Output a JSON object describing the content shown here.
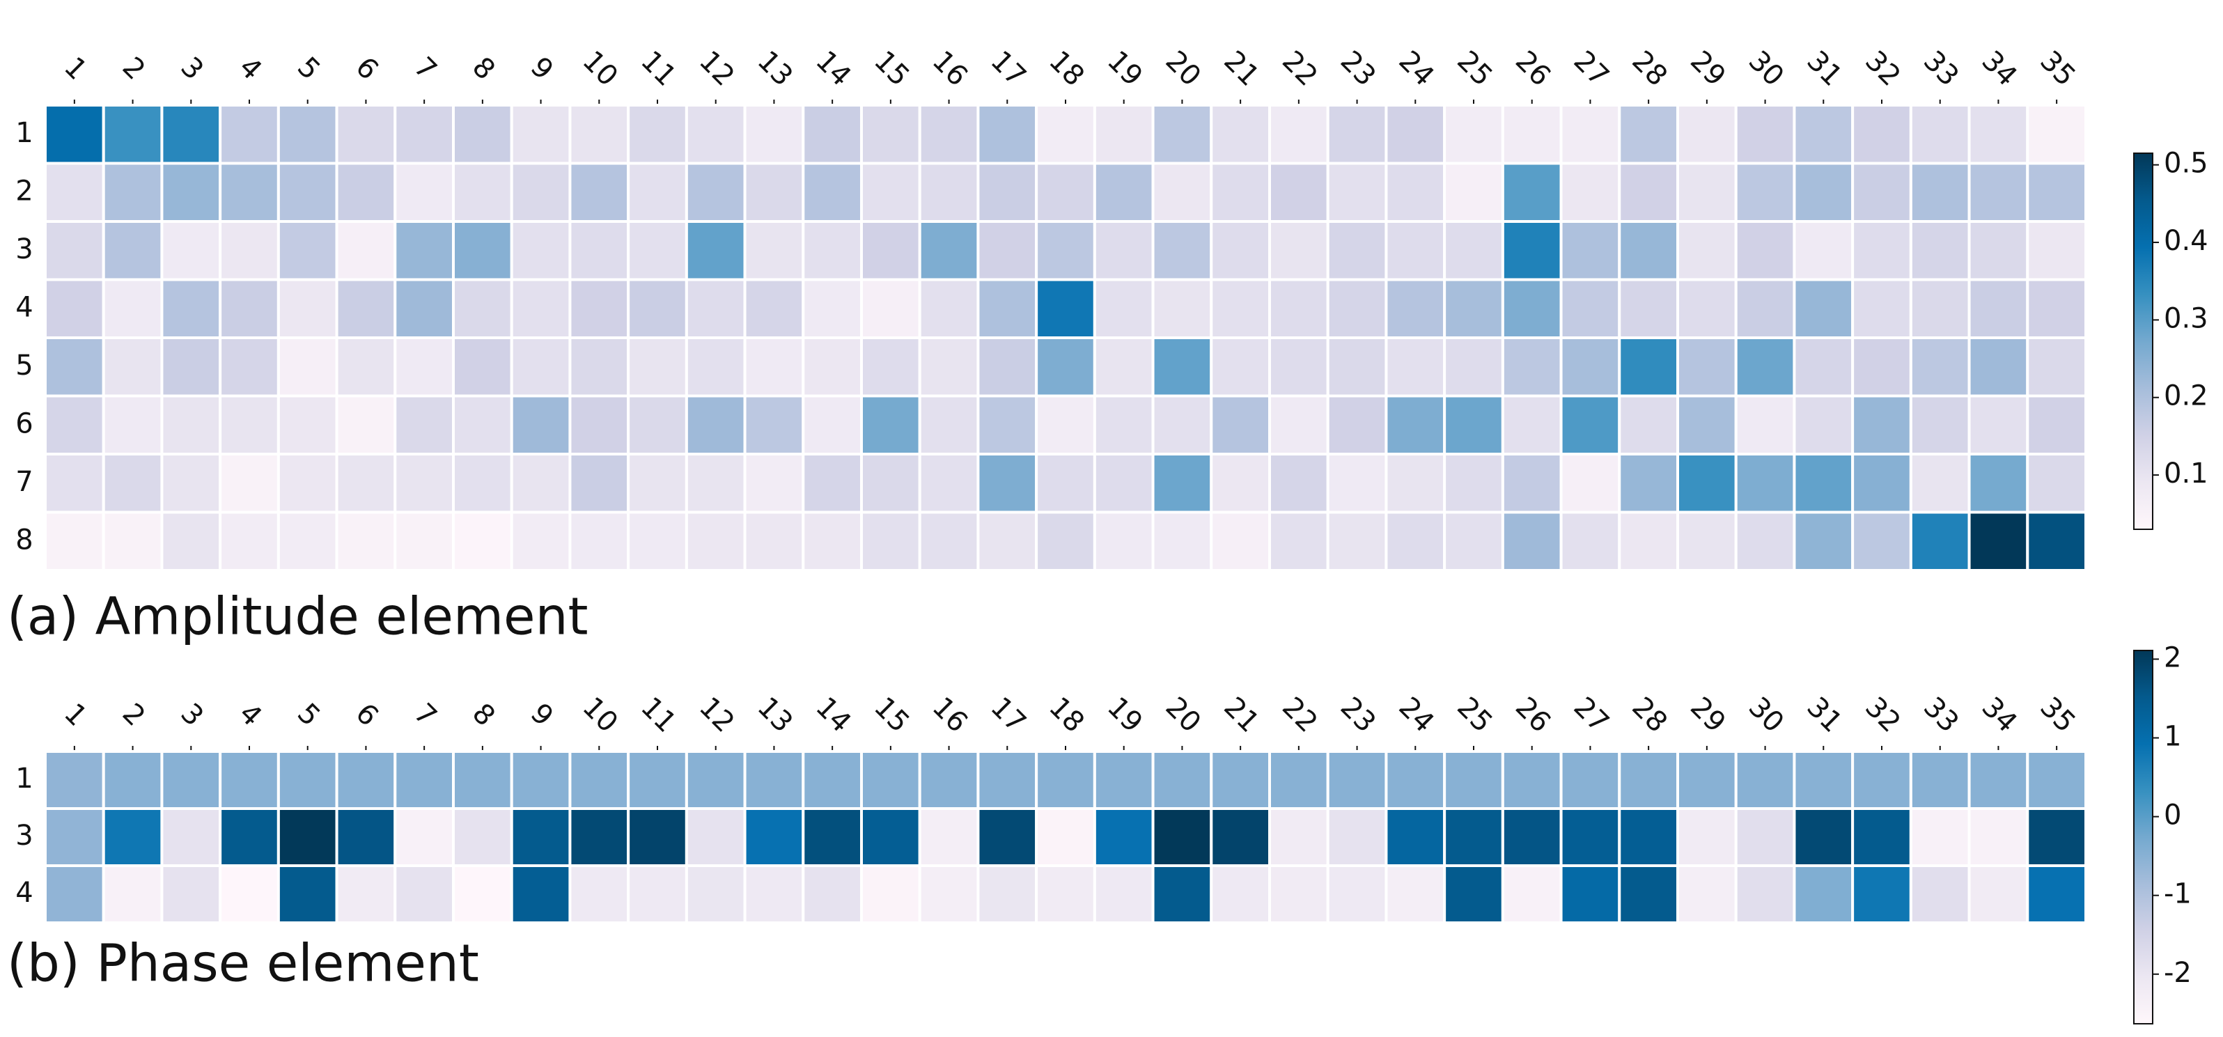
{
  "chart_data": [
    {
      "type": "heatmap",
      "caption": "(a) Amplitude element",
      "colormap": "PuBu",
      "columns": [
        1,
        2,
        3,
        4,
        5,
        6,
        7,
        8,
        9,
        10,
        11,
        12,
        13,
        14,
        15,
        16,
        17,
        18,
        19,
        20,
        21,
        22,
        23,
        24,
        25,
        26,
        27,
        28,
        29,
        30,
        31,
        32,
        33,
        34,
        35
      ],
      "rows": [
        1,
        2,
        3,
        4,
        5,
        6,
        7,
        8
      ],
      "values": [
        [
          0.4,
          0.33,
          0.35,
          0.17,
          0.19,
          0.13,
          0.14,
          0.16,
          0.1,
          0.1,
          0.13,
          0.11,
          0.08,
          0.16,
          0.13,
          0.14,
          0.2,
          0.07,
          0.09,
          0.18,
          0.11,
          0.08,
          0.14,
          0.15,
          0.07,
          0.07,
          0.07,
          0.18,
          0.09,
          0.15,
          0.18,
          0.15,
          0.12,
          0.11,
          0.05
        ],
        [
          0.11,
          0.2,
          0.23,
          0.21,
          0.19,
          0.16,
          0.08,
          0.11,
          0.13,
          0.19,
          0.11,
          0.19,
          0.13,
          0.19,
          0.11,
          0.12,
          0.16,
          0.14,
          0.19,
          0.09,
          0.12,
          0.15,
          0.11,
          0.12,
          0.06,
          0.3,
          0.09,
          0.15,
          0.1,
          0.18,
          0.21,
          0.16,
          0.2,
          0.19,
          0.19
        ],
        [
          0.13,
          0.19,
          0.08,
          0.09,
          0.17,
          0.06,
          0.23,
          0.25,
          0.11,
          0.12,
          0.11,
          0.29,
          0.1,
          0.11,
          0.15,
          0.26,
          0.15,
          0.18,
          0.12,
          0.18,
          0.12,
          0.1,
          0.14,
          0.12,
          0.12,
          0.36,
          0.2,
          0.23,
          0.1,
          0.15,
          0.08,
          0.12,
          0.14,
          0.13,
          0.09
        ],
        [
          0.15,
          0.08,
          0.19,
          0.16,
          0.09,
          0.16,
          0.22,
          0.13,
          0.11,
          0.15,
          0.16,
          0.12,
          0.14,
          0.08,
          0.06,
          0.11,
          0.2,
          0.38,
          0.11,
          0.1,
          0.11,
          0.12,
          0.14,
          0.19,
          0.21,
          0.26,
          0.17,
          0.14,
          0.12,
          0.16,
          0.23,
          0.12,
          0.13,
          0.16,
          0.15
        ],
        [
          0.2,
          0.1,
          0.16,
          0.14,
          0.06,
          0.1,
          0.08,
          0.15,
          0.11,
          0.13,
          0.1,
          0.11,
          0.08,
          0.09,
          0.12,
          0.1,
          0.16,
          0.26,
          0.1,
          0.29,
          0.11,
          0.12,
          0.13,
          0.11,
          0.12,
          0.18,
          0.21,
          0.34,
          0.19,
          0.28,
          0.14,
          0.15,
          0.18,
          0.22,
          0.13
        ],
        [
          0.14,
          0.08,
          0.1,
          0.1,
          0.09,
          0.05,
          0.13,
          0.11,
          0.22,
          0.15,
          0.13,
          0.22,
          0.18,
          0.08,
          0.27,
          0.11,
          0.18,
          0.07,
          0.11,
          0.11,
          0.19,
          0.08,
          0.15,
          0.26,
          0.28,
          0.11,
          0.31,
          0.12,
          0.21,
          0.08,
          0.12,
          0.23,
          0.14,
          0.11,
          0.15
        ],
        [
          0.11,
          0.13,
          0.1,
          0.05,
          0.09,
          0.1,
          0.1,
          0.11,
          0.1,
          0.16,
          0.1,
          0.1,
          0.07,
          0.14,
          0.13,
          0.11,
          0.26,
          0.12,
          0.12,
          0.28,
          0.09,
          0.14,
          0.08,
          0.1,
          0.12,
          0.17,
          0.06,
          0.23,
          0.33,
          0.26,
          0.29,
          0.25,
          0.1,
          0.27,
          0.13
        ],
        [
          0.05,
          0.05,
          0.1,
          0.07,
          0.07,
          0.05,
          0.05,
          0.04,
          0.07,
          0.08,
          0.08,
          0.09,
          0.09,
          0.09,
          0.11,
          0.11,
          0.1,
          0.13,
          0.08,
          0.08,
          0.06,
          0.11,
          0.1,
          0.12,
          0.11,
          0.22,
          0.11,
          0.09,
          0.1,
          0.12,
          0.24,
          0.18,
          0.36,
          0.52,
          0.47
        ]
      ],
      "clim": [
        0.03,
        0.515
      ],
      "cticks": [
        0.1,
        0.2,
        0.3,
        0.4,
        0.5
      ]
    },
    {
      "type": "heatmap",
      "caption": "(b) Phase element",
      "colormap": "PuBu",
      "columns": [
        1,
        2,
        3,
        4,
        5,
        6,
        7,
        8,
        9,
        10,
        11,
        12,
        13,
        14,
        15,
        16,
        17,
        18,
        19,
        20,
        21,
        22,
        23,
        24,
        25,
        26,
        27,
        28,
        29,
        30,
        31,
        32,
        33,
        34,
        35
      ],
      "rows": [
        1,
        3,
        4
      ],
      "values": [
        [
          -0.6,
          -0.5,
          -0.5,
          -0.5,
          -0.5,
          -0.5,
          -0.5,
          -0.5,
          -0.5,
          -0.5,
          -0.5,
          -0.5,
          -0.5,
          -0.5,
          -0.5,
          -0.5,
          -0.5,
          -0.5,
          -0.5,
          -0.5,
          -0.5,
          -0.5,
          -0.5,
          -0.5,
          -0.5,
          -0.5,
          -0.5,
          -0.5,
          -0.5,
          -0.5,
          -0.5,
          -0.5,
          -0.5,
          -0.5,
          -0.5
        ],
        [
          -0.6,
          0.8,
          -1.9,
          1.5,
          2.1,
          1.6,
          -2.4,
          -1.9,
          1.5,
          1.8,
          1.9,
          -1.9,
          0.9,
          1.7,
          1.4,
          -2.3,
          1.8,
          -2.5,
          0.9,
          2.1,
          1.9,
          -2.2,
          -1.9,
          1.2,
          1.5,
          1.6,
          1.4,
          1.4,
          -2.2,
          -1.8,
          1.8,
          1.5,
          -2.4,
          -2.4,
          1.8
        ],
        [
          -0.6,
          -2.4,
          -1.9,
          -2.6,
          1.5,
          -2.2,
          -1.9,
          -2.6,
          1.4,
          -2.1,
          -2.1,
          -2.0,
          -2.1,
          -1.9,
          -2.5,
          -2.3,
          -2.0,
          -2.2,
          -2.1,
          1.5,
          -2.1,
          -2.2,
          -2.1,
          -2.3,
          1.5,
          -2.4,
          1.1,
          1.5,
          -2.3,
          -1.8,
          -0.4,
          0.8,
          -1.8,
          -2.2,
          0.9
        ]
      ],
      "clim": [
        -2.63,
        2.11
      ],
      "cticks": [
        -2,
        -1,
        0,
        1,
        2
      ]
    }
  ]
}
